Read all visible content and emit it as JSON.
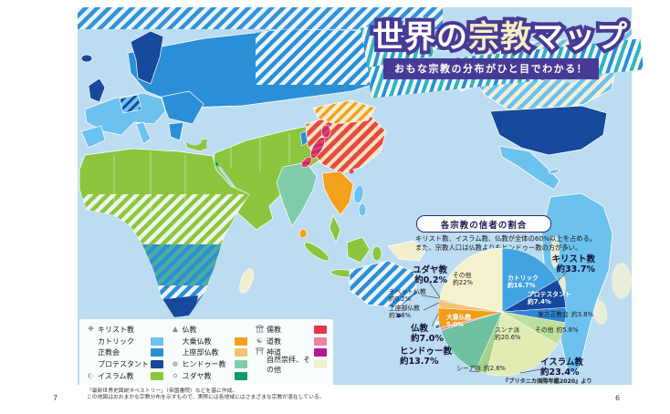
{
  "title": {
    "main": "世界の宗教マップ",
    "main_segments": [
      {
        "text": "世界の",
        "tone": "white"
      },
      {
        "text": "宗教",
        "tone": "cream"
      },
      {
        "text": "マップ",
        "tone": "white"
      }
    ],
    "subtitle": "おもな宗教の分布がひと目でわかる！",
    "banner_color": "#473a96"
  },
  "legend": {
    "columns": [
      [
        {
          "type": "group",
          "icon": "cross-icon",
          "label": "キリスト教"
        },
        {
          "type": "sub",
          "label": "カトリック",
          "color": "#6cc1ee"
        },
        {
          "type": "sub",
          "label": "正教会",
          "color": "#2b8fd8"
        },
        {
          "type": "sub",
          "label": "プロテスタント",
          "color": "#17499c"
        },
        {
          "type": "group-swatch",
          "icon": "crescent-icon",
          "label": "イスラム教",
          "color": "#8cc63f"
        }
      ],
      [
        {
          "type": "group",
          "icon": "buddha-icon",
          "label": "仏教"
        },
        {
          "type": "sub",
          "label": "大乗仏教",
          "color": "#f5a11d"
        },
        {
          "type": "sub",
          "label": "上座部仏教",
          "color": "#f8c171"
        },
        {
          "type": "group-swatch",
          "icon": "dharma-wheel-icon",
          "label": "ヒンドゥー教",
          "color": "#7fccab"
        },
        {
          "type": "group-swatch",
          "icon": "star-of-david-icon",
          "label": "ユダヤ教",
          "color": "#0c9a68"
        }
      ],
      [
        {
          "type": "group-swatch",
          "icon": "temple-icon",
          "label": "儒教",
          "color": "#e8334a"
        },
        {
          "type": "group-swatch",
          "icon": "yinyang-icon",
          "label": "道教",
          "color": "#f080a0"
        },
        {
          "type": "group-swatch",
          "icon": "torii-icon",
          "label": "神道",
          "color": "#b5198e"
        },
        {
          "type": "sub",
          "label": "自然崇拝、その他",
          "color": "#f2efcf"
        }
      ]
    ]
  },
  "pie_panel": {
    "header": "各宗教の信者の割合",
    "description_line1": "キリスト教、イスラム教、仏教が全体の60%以上を占める。",
    "description_line2": "また、宗教人口は仏教よりもヒンドゥー教の方が多い。"
  },
  "chart_data": {
    "type": "pie",
    "title": "各宗教の信者の割合",
    "unit": "%",
    "start_angle": "top",
    "direction": "clockwise",
    "slices": [
      {
        "label": "カトリック",
        "display": "約16.7%",
        "value": 16.7,
        "group": "キリスト教",
        "color": "#42a3e0"
      },
      {
        "label": "プロテスタント",
        "display": "約7.4%",
        "value": 7.4,
        "group": "キリスト教",
        "color": "#16499e"
      },
      {
        "label": "東方正教会",
        "display": "約3.8%",
        "value": 3.8,
        "group": "キリスト教",
        "color": "#2e86d4"
      },
      {
        "label": "その他",
        "display": "約5.8%",
        "value": 5.8,
        "group": "キリスト教",
        "color": "#bedf9b"
      },
      {
        "label": "スンナ派",
        "display": "約20.6%",
        "value": 20.6,
        "group": "イスラム教",
        "color": "#e0ecb4"
      },
      {
        "label": "シーア派",
        "display": "約2.8%",
        "value": 2.8,
        "group": "イスラム教",
        "color": "#a6d389"
      },
      {
        "label": "ヒンドゥー教",
        "display": "約13.7%",
        "value": 13.7,
        "group": "ヒンドゥー教",
        "color": "#6ec2a0"
      },
      {
        "label": "",
        "display": "",
        "value": 0.7,
        "group": "",
        "color": "#ef8fa5"
      },
      {
        "label": "大乗仏教",
        "display": "5.0%",
        "value": 5.0,
        "group": "仏教",
        "color": "#f49d1c"
      },
      {
        "label": "上座部仏教",
        "display": "約1.8%",
        "value": 1.8,
        "group": "仏教",
        "color": "#f8c171"
      },
      {
        "label": "チベット仏教",
        "display": "約0.2%",
        "value": 0.2,
        "group": "仏教",
        "color": "#d03a32"
      },
      {
        "label": "ユダヤ教",
        "display": "約0.2%",
        "value": 0.2,
        "group": "ユダヤ教",
        "color": "#0d9a68"
      },
      {
        "label": "その他",
        "display": "約22%",
        "value": 22,
        "group": "その他",
        "color": "#f4f2cd"
      }
    ],
    "groups": [
      {
        "label": "キリスト教",
        "display": "約33.7%"
      },
      {
        "label": "イスラム教",
        "display": "約23.4%"
      },
      {
        "label": "ヒンドゥー教",
        "display": "約13.7%"
      },
      {
        "label": "仏教",
        "display": "約7.0%"
      },
      {
        "label": "ユダヤ教",
        "display": "約0.2%"
      }
    ],
    "source": "『ブリタニカ国際年鑑2020』より"
  },
  "footnote": {
    "line1": "「最新世界史図説タペストリー」（帝国書院）などを基に作成。",
    "line2": "この地図はおおまかな宗教分布を示すもので、実際には各地域にはさまざまな宗教が混在している。"
  },
  "page": {
    "left_page_number": "7",
    "right_page_number": "6"
  }
}
